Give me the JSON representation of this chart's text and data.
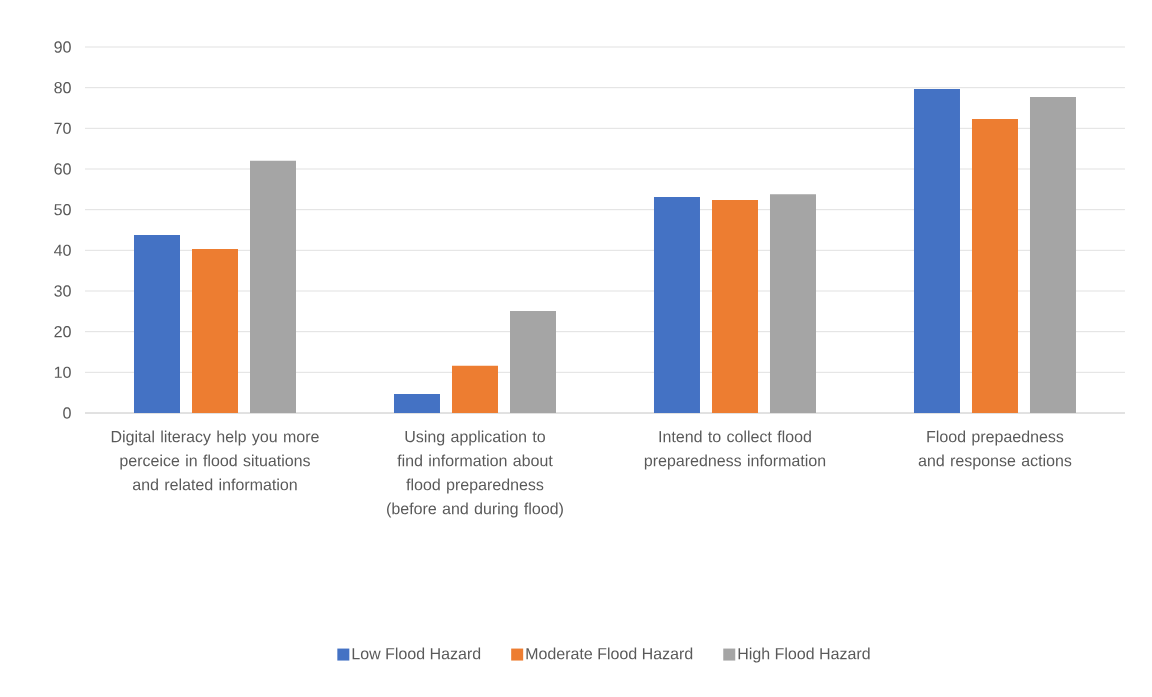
{
  "chart_data": {
    "type": "bar",
    "categories": [
      "Digital literacy help you more perceice in flood situations and related information",
      "Using application to find information about flood preparedness (before and during flood)",
      "Intend to collect flood preparedness information",
      "Flood prepaedness and response actions"
    ],
    "series": [
      {
        "name": "Low Flood Hazard",
        "color": "#4472c4",
        "values": [
          43.8,
          4.7,
          53.1,
          79.7
        ]
      },
      {
        "name": "Moderate Flood Hazard",
        "color": "#ed7d31",
        "values": [
          40.3,
          11.6,
          52.4,
          72.3
        ]
      },
      {
        "name": "High Flood Hazard",
        "color": "#a5a5a5",
        "values": [
          62.0,
          25.1,
          53.8,
          77.7
        ]
      }
    ],
    "ylim": [
      0,
      90
    ],
    "yticks": [
      0,
      10,
      20,
      30,
      40,
      50,
      60,
      70,
      80,
      90
    ],
    "grid": "y",
    "legend": "bottom"
  }
}
